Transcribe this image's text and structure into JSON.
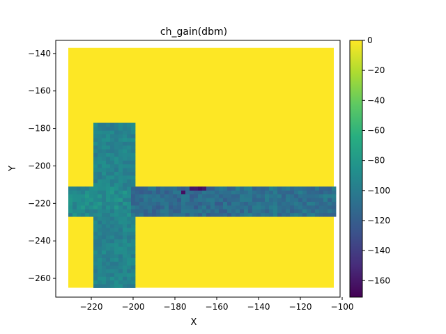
{
  "chart_data": {
    "type": "heatmap",
    "title": "ch_gain(dbm)",
    "xlabel": "X",
    "ylabel": "Y",
    "xlim": [
      -237,
      -101
    ],
    "ylim": [
      -270,
      -133
    ],
    "x_ticks": [
      -220,
      -200,
      -180,
      -160,
      -140,
      -120,
      -100
    ],
    "y_ticks": [
      -140,
      -160,
      -180,
      -200,
      -220,
      -240,
      -260
    ],
    "x_tick_labels": [
      "−220",
      "−200",
      "−180",
      "−160",
      "−140",
      "−120",
      "−100"
    ],
    "y_tick_labels": [
      "−140",
      "−160",
      "−180",
      "−200",
      "−220",
      "−240",
      "−260"
    ],
    "grid": false,
    "colormap": "viridis",
    "colorbar": {
      "min": -171,
      "max": 0,
      "ticks": [
        0,
        -20,
        -40,
        -60,
        -80,
        -100,
        -120,
        -140,
        -160
      ],
      "tick_labels": [
        "0",
        "−20",
        "−40",
        "−60",
        "−80",
        "−100",
        "−120",
        "−140",
        "−160"
      ]
    },
    "regions": [
      {
        "name": "open area",
        "x": [
          -231,
          -104
        ],
        "y": [
          -265,
          -137
        ],
        "value": 0
      },
      {
        "name": "vertical corridor",
        "x": [
          -218,
          -200
        ],
        "y": [
          -265,
          -178
        ],
        "value": -95
      },
      {
        "name": "horizontal corridor",
        "x": [
          -231,
          -104
        ],
        "y": [
          -227,
          -211
        ],
        "value": -105
      },
      {
        "name": "deep fade",
        "x": [
          -178,
          -160
        ],
        "y": [
          -214,
          -210
        ],
        "value": -160
      }
    ]
  }
}
